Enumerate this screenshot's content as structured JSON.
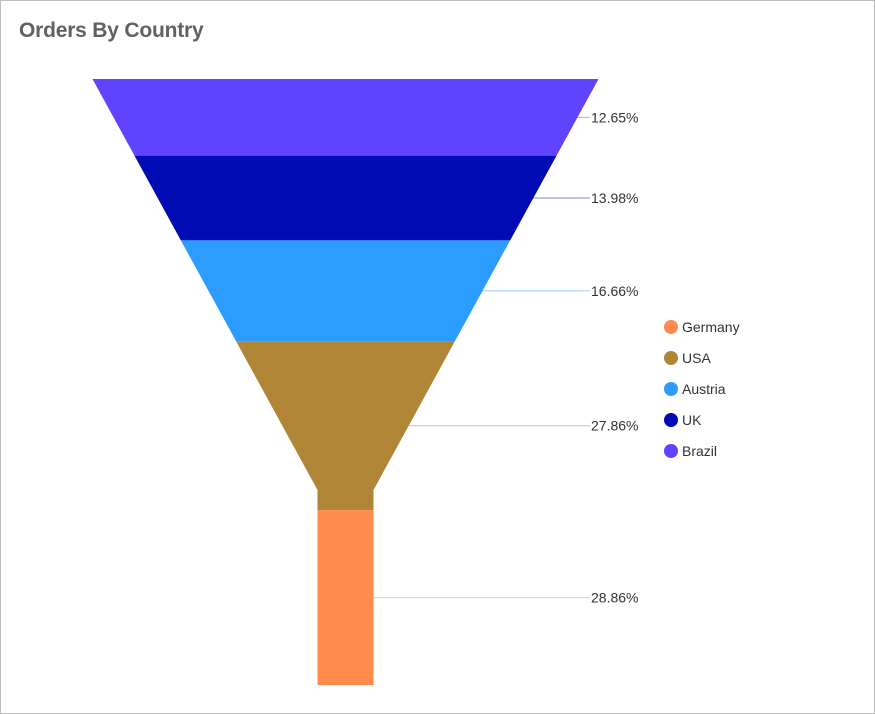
{
  "panel": {
    "title": "Orders By Country"
  },
  "chart_data": {
    "type": "funnel",
    "title": "Orders By Country",
    "series": [
      {
        "name": "Brazil",
        "value": 12.65,
        "label": "12.65%",
        "color": "#6043ff"
      },
      {
        "name": "UK",
        "value": 13.98,
        "label": "13.98%",
        "color": "#000bb4"
      },
      {
        "name": "Austria",
        "value": 16.66,
        "label": "16.66%",
        "color": "#2d9cff"
      },
      {
        "name": "USA",
        "value": 27.86,
        "label": "27.86%",
        "color": "#b08536"
      },
      {
        "name": "Germany",
        "value": 28.86,
        "label": "28.86%",
        "color": "#ff8b4d"
      }
    ],
    "legend": {
      "position": "right",
      "order": [
        "Germany",
        "USA",
        "Austria",
        "UK",
        "Brazil"
      ]
    }
  }
}
